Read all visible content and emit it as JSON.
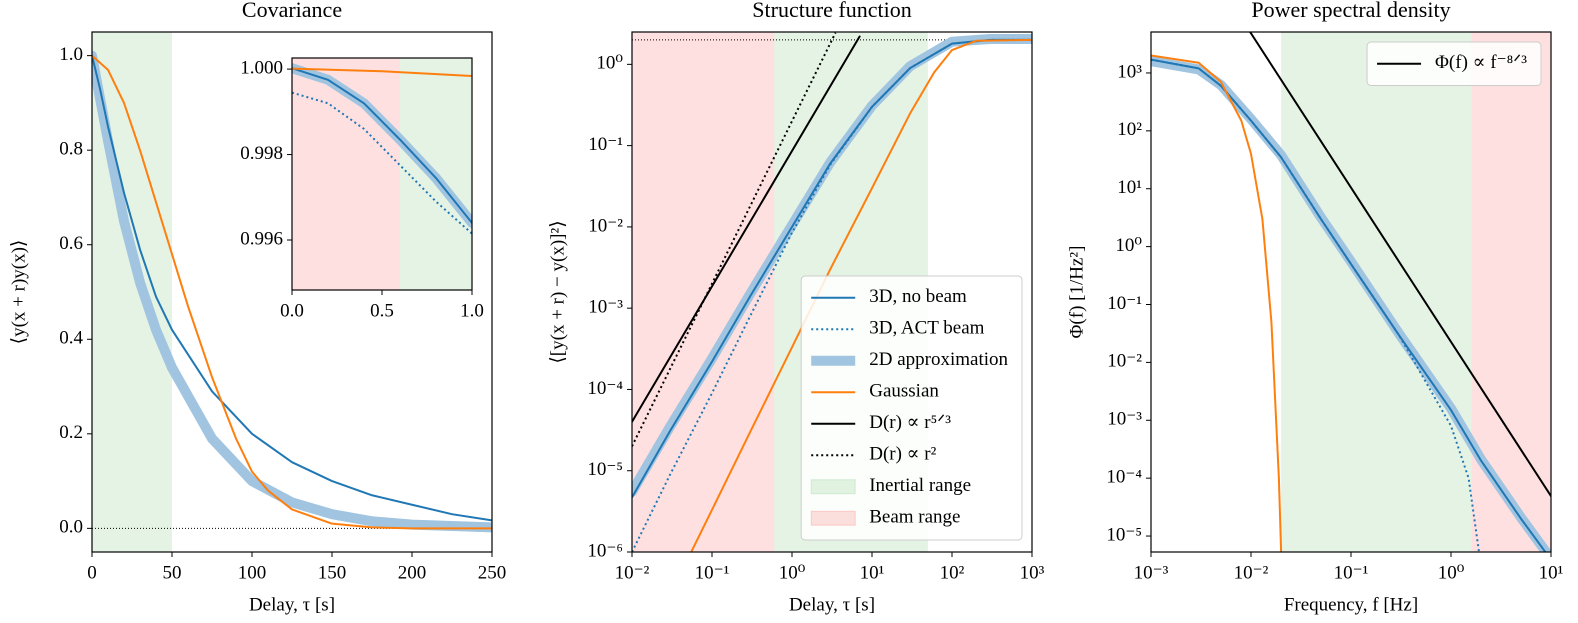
{
  "chart_data": [
    {
      "type": "line",
      "title": "Covariance",
      "xlabel": "Delay, τ [s]",
      "ylabel": "⟨y(x + r)y(x)⟩",
      "xlim": [
        0,
        250
      ],
      "ylim": [
        -0.05,
        1.05
      ],
      "xticks": [
        0,
        50,
        100,
        150,
        200,
        250
      ],
      "yticks": [
        {
          "value": 0,
          "label": "0.0"
        },
        {
          "value": 0.2,
          "label": "0.2"
        },
        {
          "value": 0.4,
          "label": "0.4"
        },
        {
          "value": 0.6,
          "label": "0.6"
        },
        {
          "value": 0.8,
          "label": "0.8"
        },
        {
          "value": 1,
          "label": "1.0"
        }
      ],
      "hline": 0,
      "regions": [
        {
          "x": [
            0,
            50
          ],
          "color": "#2ca02c"
        }
      ],
      "series": [
        {
          "color": "#a1c4e0",
          "style": "thick",
          "x": [
            0,
            10,
            20,
            30,
            40,
            50,
            75,
            100,
            125,
            150,
            175,
            200,
            250
          ],
          "values": [
            1,
            0.82,
            0.65,
            0.52,
            0.42,
            0.34,
            0.19,
            0.1,
            0.055,
            0.03,
            0.015,
            0.008,
            0.002
          ]
        },
        {
          "color": "#1f77b4",
          "style": "solid",
          "x": [
            0,
            5,
            10,
            20,
            30,
            40,
            50,
            75,
            100,
            125,
            150,
            175,
            200,
            225,
            250
          ],
          "values": [
            1,
            0.93,
            0.85,
            0.71,
            0.59,
            0.49,
            0.42,
            0.29,
            0.2,
            0.14,
            0.1,
            0.07,
            0.05,
            0.03,
            0.017
          ]
        },
        {
          "color": "#ff7f0e",
          "style": "solid",
          "x": [
            0,
            10,
            20,
            30,
            40,
            50,
            60,
            75,
            90,
            100,
            110,
            125,
            150,
            175,
            200,
            250
          ],
          "values": [
            1,
            0.97,
            0.9,
            0.8,
            0.69,
            0.58,
            0.47,
            0.32,
            0.19,
            0.12,
            0.08,
            0.04,
            0.01,
            0.002,
            0,
            0
          ]
        }
      ]
    },
    {
      "type": "line",
      "xlim": [
        0,
        1
      ],
      "ylim": [
        0.99483,
        1.00026
      ],
      "xticks": [
        {
          "value": 0,
          "label": "0.0"
        },
        0.5,
        {
          "value": 1,
          "label": "1.0"
        }
      ],
      "yticks": [
        0.996,
        0.998,
        {
          "value": 1,
          "label": "1.000"
        }
      ],
      "regions": [
        {
          "x": [
            0,
            0.6
          ],
          "color": "#ff0000"
        },
        {
          "x": [
            0.6,
            1
          ],
          "color": "#2ca02c"
        }
      ],
      "series": [
        {
          "color": "#a1c4e0",
          "style": "thick",
          "x": [
            0,
            0.2,
            0.4,
            0.6,
            0.8,
            1
          ],
          "values": [
            1.00002,
            0.99975,
            0.9992,
            0.99835,
            0.99745,
            0.9964
          ]
        },
        {
          "color": "#1f77b4",
          "style": "solid",
          "x": [
            0,
            0.2,
            0.4,
            0.6,
            0.8,
            1
          ],
          "values": [
            1.00002,
            0.99975,
            0.9992,
            0.99835,
            0.99745,
            0.9964
          ]
        },
        {
          "color": "#1f77b4",
          "style": "dotted",
          "x": [
            0,
            0.2,
            0.4,
            0.6,
            0.8,
            1
          ],
          "values": [
            0.99945,
            0.9992,
            0.9986,
            0.99775,
            0.9969,
            0.99615
          ]
        },
        {
          "color": "#ff7f0e",
          "style": "solid",
          "x": [
            0,
            0.5,
            1
          ],
          "values": [
            1.00001,
            0.99995,
            0.99984
          ]
        }
      ]
    },
    {
      "type": "line",
      "title": "Structure function",
      "xlabel": "Delay, τ [s]",
      "ylabel": "⟨[y(x + r) − y(x)]²⟩",
      "xscale": "log",
      "yscale": "log",
      "xlim": [
        0.01,
        1000
      ],
      "ylim": [
        1e-06,
        2.5
      ],
      "xticks": [
        {
          "value": 0.01,
          "label": "10⁻²"
        },
        {
          "value": 0.1,
          "label": "10⁻¹"
        },
        {
          "value": 1,
          "label": "10⁰"
        },
        {
          "value": 10,
          "label": "10¹"
        },
        {
          "value": 100,
          "label": "10²"
        },
        {
          "value": 1000,
          "label": "10³"
        }
      ],
      "yticks": [
        {
          "value": 1e-06,
          "label": "10⁻⁶"
        },
        {
          "value": 1e-05,
          "label": "10⁻⁵"
        },
        {
          "value": 0.0001,
          "label": "10⁻⁴"
        },
        {
          "value": 0.001,
          "label": "10⁻³"
        },
        {
          "value": 0.01,
          "label": "10⁻²"
        },
        {
          "value": 0.1,
          "label": "10⁻¹"
        },
        {
          "value": 1,
          "label": "10⁰"
        }
      ],
      "hline": 2,
      "legend": "lower right",
      "regions": [
        {
          "name": "Inertial range",
          "x": [
            0.6,
            50
          ],
          "color": "#2ca02c"
        },
        {
          "name": "Beam range",
          "x": [
            0.01,
            0.6
          ],
          "color": "#ff0000"
        }
      ],
      "series": [
        {
          "name": "3D, no beam",
          "color": "#1f77b4",
          "style": "solid",
          "x": [
            0.01,
            0.03,
            0.1,
            0.3,
            1,
            3,
            10,
            30,
            100,
            300,
            1000
          ],
          "values": [
            4.7e-06,
            3.1e-05,
            0.00022,
            0.0014,
            0.01,
            0.06,
            0.3,
            0.9,
            1.8,
            2,
            2
          ]
        },
        {
          "name": "3D, ACT beam",
          "color": "#1f77b4",
          "style": "dotted",
          "x": [
            0.01,
            0.03,
            0.1,
            0.3,
            1,
            3,
            10,
            30,
            100,
            300,
            1000
          ],
          "values": [
            1e-06,
            9e-06,
            9e-05,
            0.0008,
            0.0085,
            0.058,
            0.3,
            0.9,
            1.8,
            2,
            2
          ]
        },
        {
          "name": "2D approximation",
          "color": "#a1c4e0",
          "style": "thick",
          "x": [
            0.01,
            0.03,
            0.1,
            0.3,
            1,
            3,
            10,
            30,
            100,
            300,
            1000
          ],
          "values": [
            5.5e-06,
            3.5e-05,
            0.00024,
            0.0015,
            0.0105,
            0.062,
            0.31,
            0.95,
            1.9,
            2.05,
            2.05
          ]
        },
        {
          "name": "Gaussian",
          "color": "#ff7f0e",
          "style": "solid",
          "x": [
            0.055,
            0.1,
            0.3,
            1,
            3,
            10,
            30,
            60,
            100,
            200,
            1000
          ],
          "values": [
            1e-06,
            3.3e-06,
            3e-05,
            0.00033,
            0.003,
            0.03,
            0.25,
            0.8,
            1.5,
            1.95,
            2
          ]
        },
        {
          "name": "D(r) ∝ r⁵ᐟ³",
          "color": "#000000",
          "style": "solid",
          "x": [
            0.01,
            7
          ],
          "values": [
            4e-05,
            2.2
          ]
        },
        {
          "name": "D(r) ∝ r²",
          "color": "#000000",
          "style": "dotted",
          "x": [
            0.01,
            3.5
          ],
          "values": [
            2e-05,
            2.45
          ]
        }
      ]
    },
    {
      "type": "line",
      "title": "Power spectral density",
      "xlabel": "Frequency, f [Hz]",
      "ylabel": "Φ(f) [1/Hz²]",
      "xscale": "log",
      "yscale": "log",
      "xlim": [
        0.001,
        10
      ],
      "ylim": [
        5.3e-06,
        5100
      ],
      "xticks": [
        {
          "value": 0.001,
          "label": "10⁻³"
        },
        {
          "value": 0.01,
          "label": "10⁻²"
        },
        {
          "value": 0.1,
          "label": "10⁻¹"
        },
        {
          "value": 1,
          "label": "10⁰"
        },
        {
          "value": 10,
          "label": "10¹"
        }
      ],
      "yticks": [
        {
          "value": 1e-05,
          "label": "10⁻⁵"
        },
        {
          "value": 0.0001,
          "label": "10⁻⁴"
        },
        {
          "value": 0.001,
          "label": "10⁻³"
        },
        {
          "value": 0.01,
          "label": "10⁻²"
        },
        {
          "value": 0.1,
          "label": "10⁻¹"
        },
        {
          "value": 1,
          "label": "10⁰"
        },
        {
          "value": 10,
          "label": "10¹"
        },
        {
          "value": 100,
          "label": "10²"
        },
        {
          "value": 1000,
          "label": "10³"
        }
      ],
      "legend": "upper right",
      "regions": [
        {
          "x": [
            0.02,
            1.6
          ],
          "color": "#2ca02c"
        },
        {
          "x": [
            1.6,
            10
          ],
          "color": "#ff0000"
        }
      ],
      "series": [
        {
          "color": "#a1c4e0",
          "style": "thick",
          "x": [
            0.001,
            0.003,
            0.005,
            0.01,
            0.02,
            0.05,
            0.1,
            0.3,
            1,
            2,
            5,
            9
          ],
          "values": [
            1600,
            1150,
            620,
            160,
            38,
            3.2,
            0.55,
            0.032,
            0.0016,
            0.00021,
            2.1e-05,
            5.2e-06
          ]
        },
        {
          "color": "#1f77b4",
          "style": "solid",
          "x": [
            0.001,
            0.003,
            0.005,
            0.01,
            0.02,
            0.05,
            0.1,
            0.3,
            1,
            2,
            5,
            9
          ],
          "values": [
            1700,
            1200,
            600,
            150,
            35,
            3,
            0.5,
            0.03,
            0.0015,
            0.0002,
            2e-05,
            5e-06
          ]
        },
        {
          "color": "#1f77b4",
          "style": "dotted",
          "x": [
            0.001,
            0.003,
            0.005,
            0.01,
            0.02,
            0.05,
            0.1,
            0.3,
            1,
            1.5,
            1.9
          ],
          "values": [
            1700,
            1200,
            600,
            150,
            35,
            3,
            0.5,
            0.03,
            0.0008,
            0.0001,
            5.5e-06
          ]
        },
        {
          "color": "#ff7f0e",
          "style": "solid",
          "x": [
            0.001,
            0.003,
            0.005,
            0.008,
            0.01,
            0.013,
            0.016,
            0.019,
            0.02
          ],
          "values": [
            2000,
            1500,
            700,
            150,
            40,
            3,
            0.05,
            0.0001,
            5.5e-06
          ]
        },
        {
          "name": "Φ(f) ∝ f⁻⁸ᐟ³",
          "color": "#000000",
          "style": "solid",
          "x": [
            0.0098,
            10
          ],
          "values": [
            5100,
            4.9e-05
          ]
        }
      ]
    }
  ]
}
